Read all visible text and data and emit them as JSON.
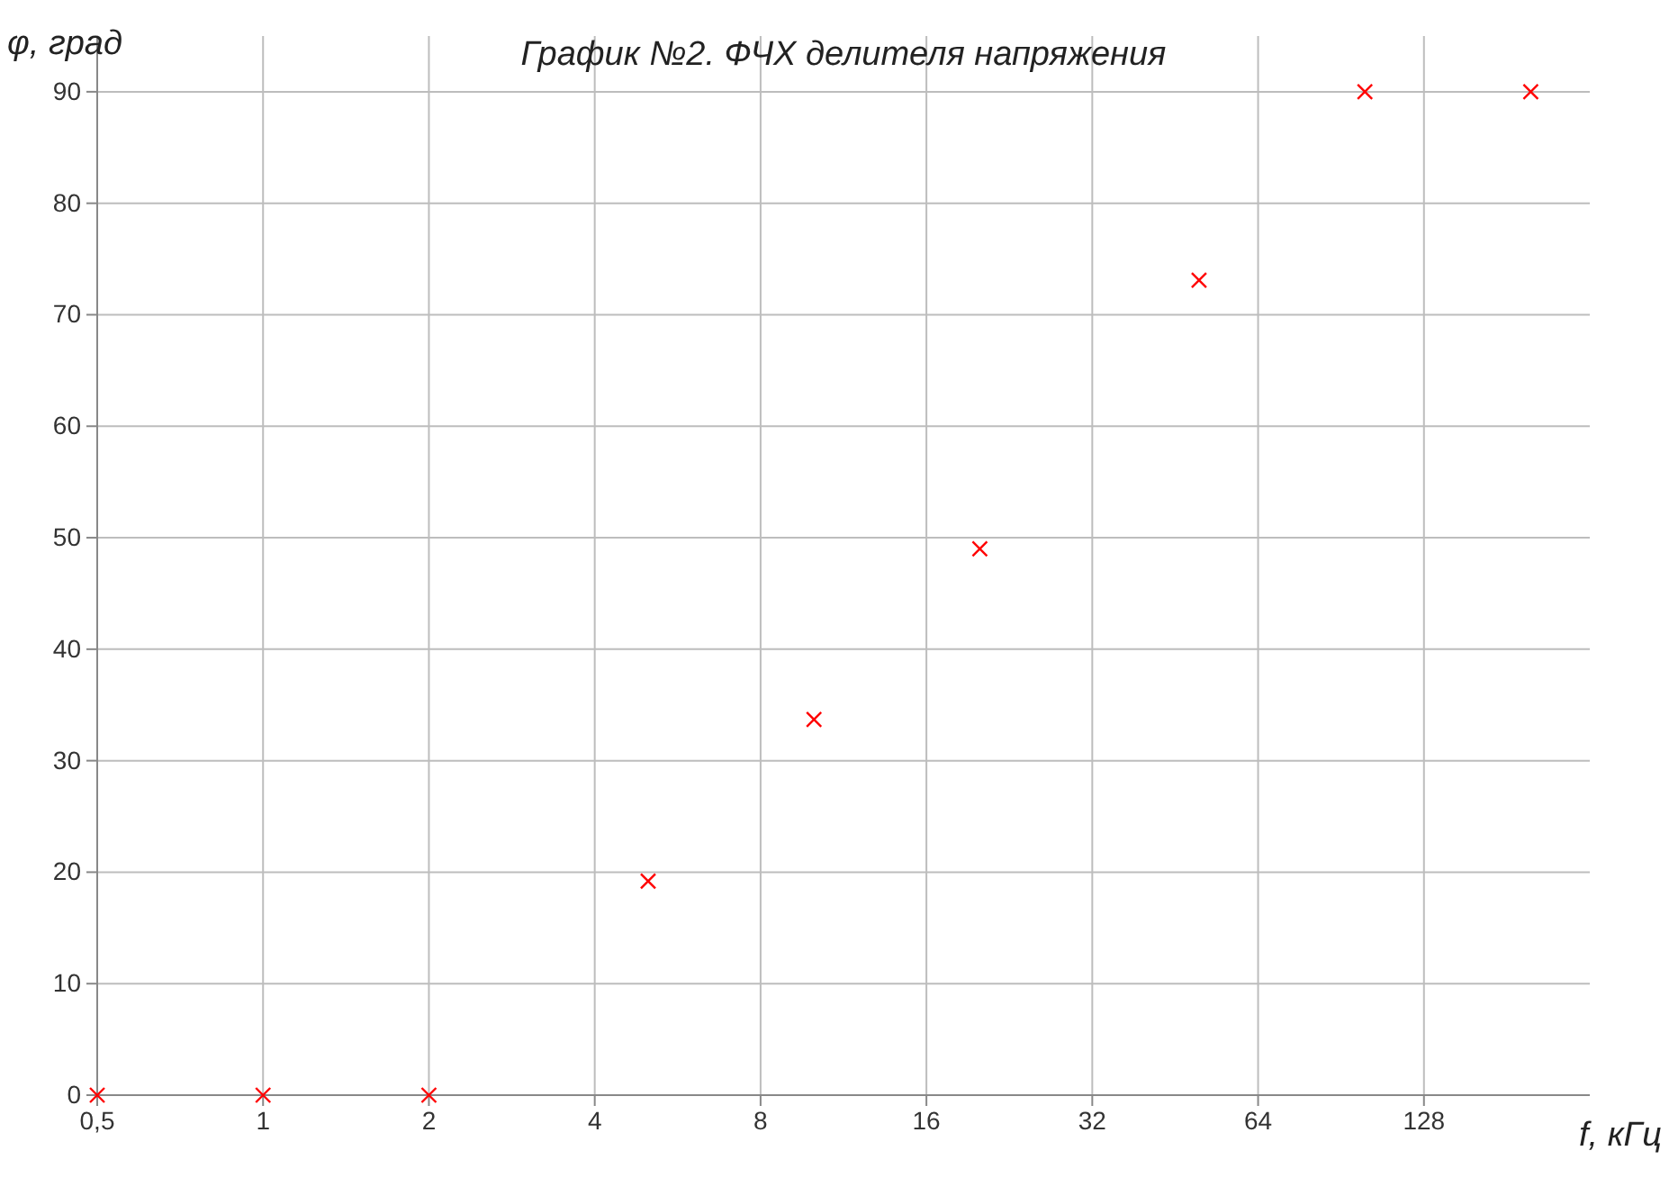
{
  "chart_data": {
    "type": "scatter",
    "title": "График №2. ФЧХ делителя напряжения",
    "xlabel": "f, кГц",
    "ylabel": "φ, град",
    "x": [
      0.5,
      1,
      2,
      5,
      10,
      20,
      50,
      100,
      200
    ],
    "series": [
      {
        "color": "#ff0000",
        "values": [
          0,
          0,
          0,
          19.2,
          33.7,
          49.0,
          73.1,
          90,
          90
        ]
      }
    ],
    "xlim": [
      0.5,
      256
    ],
    "xticks": [
      {
        "value": 0.5,
        "label": "0,5"
      },
      1,
      2,
      4,
      8,
      16,
      32,
      64,
      128
    ],
    "ylim": [
      0,
      95
    ],
    "yticks": [
      0,
      10,
      20,
      30,
      40,
      50,
      60,
      70,
      80,
      90
    ],
    "log": "x",
    "grid": true,
    "marker": "cross"
  }
}
